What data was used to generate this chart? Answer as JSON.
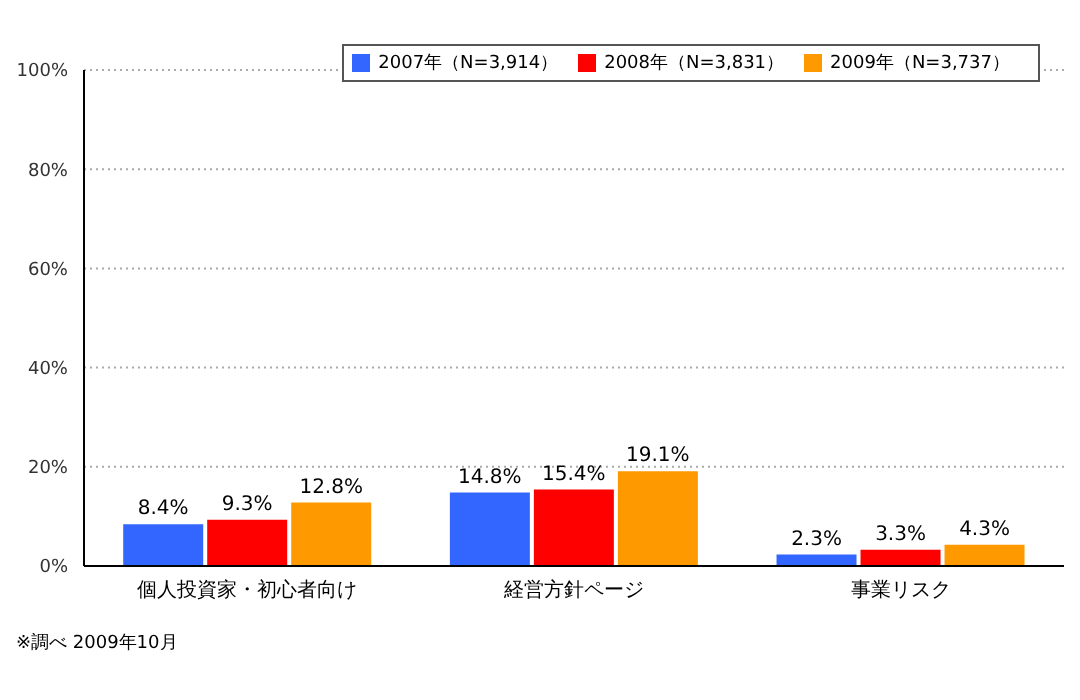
{
  "chart_data": {
    "type": "bar",
    "categories": [
      "個人投資家・初心者向け",
      "経営方針ページ",
      "事業リスク"
    ],
    "series": [
      {
        "name": "2007年（N=3,914）",
        "color": "#3366ff",
        "values": [
          8.4,
          14.8,
          2.3
        ],
        "value_labels": [
          "8.4%",
          "14.8%",
          "2.3%"
        ]
      },
      {
        "name": "2008年（N=3,831）",
        "color": "#ff0000",
        "values": [
          9.3,
          15.4,
          3.3
        ],
        "value_labels": [
          "9.3%",
          "15.4%",
          "3.3%"
        ]
      },
      {
        "name": "2009年（N=3,737）",
        "color": "#ff9900",
        "values": [
          12.8,
          19.1,
          4.3
        ],
        "value_labels": [
          "12.8%",
          "19.1%",
          "4.3%"
        ]
      }
    ],
    "ylim": [
      0,
      100
    ],
    "yticks": [
      {
        "value": 0,
        "label": "0%"
      },
      {
        "value": 20,
        "label": "20%"
      },
      {
        "value": 40,
        "label": "40%"
      },
      {
        "value": 60,
        "label": "60%"
      },
      {
        "value": 80,
        "label": "80%"
      },
      {
        "value": 100,
        "label": "100%"
      }
    ],
    "grid": "y",
    "legend": "top right",
    "annotations": [
      "※調べ 2009年10月"
    ]
  }
}
